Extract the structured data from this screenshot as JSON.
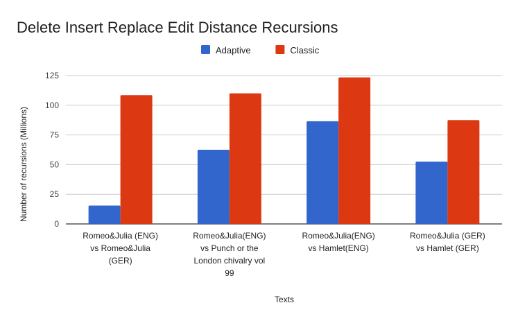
{
  "chart_data": {
    "type": "bar",
    "title": "Delete Insert Replace Edit Distance Recursions",
    "xlabel": "Texts",
    "ylabel": "Number of recursions (Millions)",
    "ylim": [
      0,
      125
    ],
    "yticks": [
      0,
      25,
      50,
      75,
      100,
      125
    ],
    "grid": true,
    "legend_position": "top-center",
    "categories": [
      [
        "Romeo&Julia (ENG)",
        "vs Romeo&Julia",
        "(GER)"
      ],
      [
        "Romeo&Julia(ENG)",
        "vs Punch or the",
        "London chivalry vol",
        "99"
      ],
      [
        "Romeo&Julia(ENG)",
        "vs Hamlet(ENG)"
      ],
      [
        "Romeo&Julia (GER)",
        "vs Hamlet (GER)"
      ]
    ],
    "series": [
      {
        "name": "Adaptive",
        "color": "#3366cc",
        "values": [
          15.5,
          62.5,
          86.5,
          52.5
        ]
      },
      {
        "name": "Classic",
        "color": "#dc3912",
        "values": [
          108.5,
          110,
          123.5,
          87.5
        ]
      }
    ]
  }
}
